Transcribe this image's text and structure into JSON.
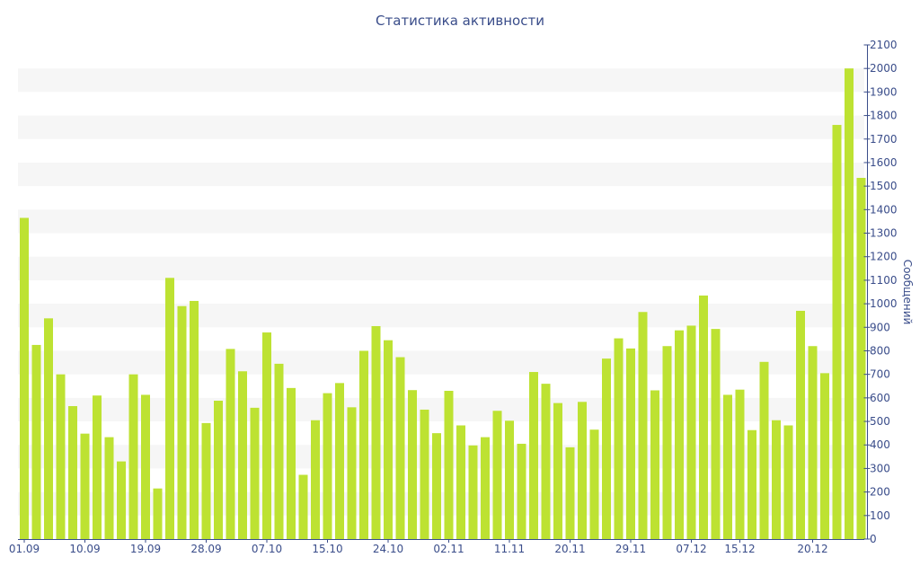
{
  "chart_data": {
    "type": "bar",
    "title": "Статистика активности",
    "ylabel": "Сообщений",
    "xlabel": "",
    "ylim": [
      0,
      2100
    ],
    "y_ticks": [
      0,
      100,
      200,
      300,
      400,
      500,
      600,
      700,
      800,
      900,
      1000,
      1100,
      1200,
      1300,
      1400,
      1500,
      1600,
      1700,
      1800,
      1900,
      2000,
      2100
    ],
    "y_axis_side": "right",
    "grid": "alternating horizontal bands",
    "x_tick_labels": [
      "01.09",
      "10.09",
      "19.09",
      "28.09",
      "07.10",
      "15.10",
      "24.10",
      "02.11",
      "11.11",
      "20.11",
      "29.11",
      "07.12",
      "15.12",
      "20.12"
    ],
    "x_tick_label_bar_index": [
      0,
      5,
      10,
      15,
      20,
      25,
      30,
      35,
      40,
      45,
      50,
      55,
      59,
      65
    ],
    "values": [
      1365,
      825,
      938,
      700,
      565,
      448,
      610,
      433,
      330,
      700,
      613,
      215,
      1110,
      990,
      1012,
      493,
      588,
      808,
      713,
      558,
      878,
      745,
      642,
      273,
      505,
      620,
      663,
      560,
      800,
      905,
      845,
      773,
      633,
      550,
      450,
      630,
      483,
      398,
      433,
      545,
      503,
      405,
      710,
      660,
      578,
      390,
      583,
      465,
      767,
      853,
      810,
      965,
      632,
      820,
      887,
      907,
      1035,
      893,
      613,
      635,
      463,
      753,
      505,
      483,
      970,
      820,
      705,
      1760,
      2000,
      1535
    ],
    "bar_color": "#bde232",
    "axis_color": "#3a4d8a"
  }
}
